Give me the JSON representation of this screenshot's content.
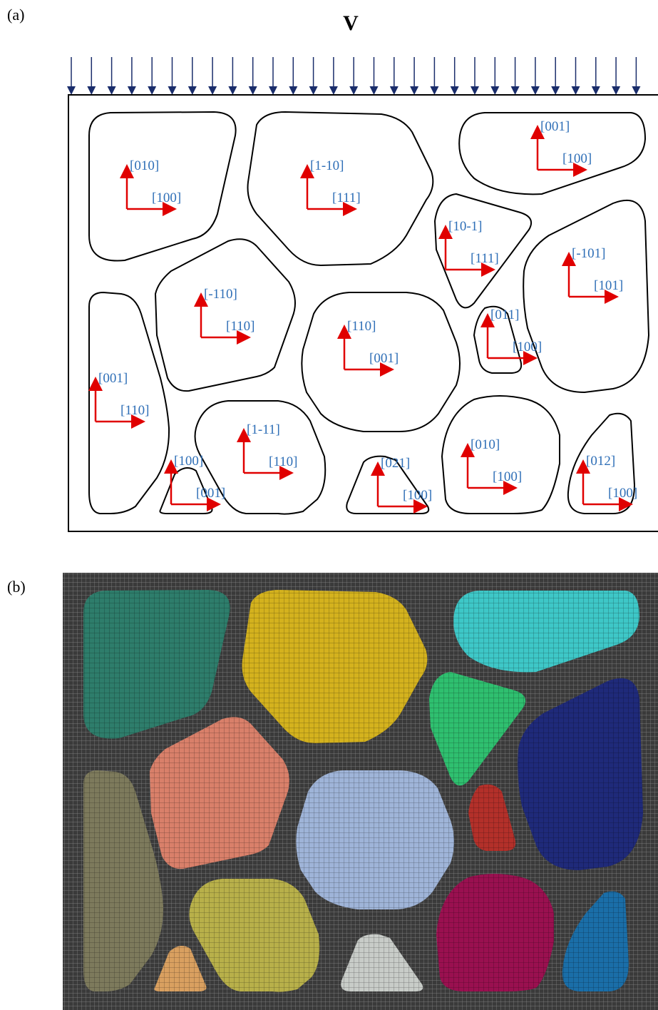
{
  "panels": {
    "a": "(a)",
    "b": "(b)"
  },
  "load_label": "V",
  "grains": [
    {
      "up": "[010]",
      "right": "[100]"
    },
    {
      "up": "[1-10]",
      "right": "[111]"
    },
    {
      "up": "[001]",
      "right": "[100]"
    },
    {
      "up": "[10-1]",
      "right": "[111]"
    },
    {
      "up": "[-101]",
      "right": "[101]"
    },
    {
      "up": "[-110]",
      "right": "[110]"
    },
    {
      "up": "[110]",
      "right": "[001]"
    },
    {
      "up": "[011]",
      "right": "[100]"
    },
    {
      "up": "[001]",
      "right": "[110]"
    },
    {
      "up": "[1-11]",
      "right": "[110]"
    },
    {
      "up": "[100]",
      "right": "[001]"
    },
    {
      "up": "[021]",
      "right": "[100]"
    },
    {
      "up": "[010]",
      "right": "[100]"
    },
    {
      "up": "[012]",
      "right": "[100]"
    }
  ]
}
